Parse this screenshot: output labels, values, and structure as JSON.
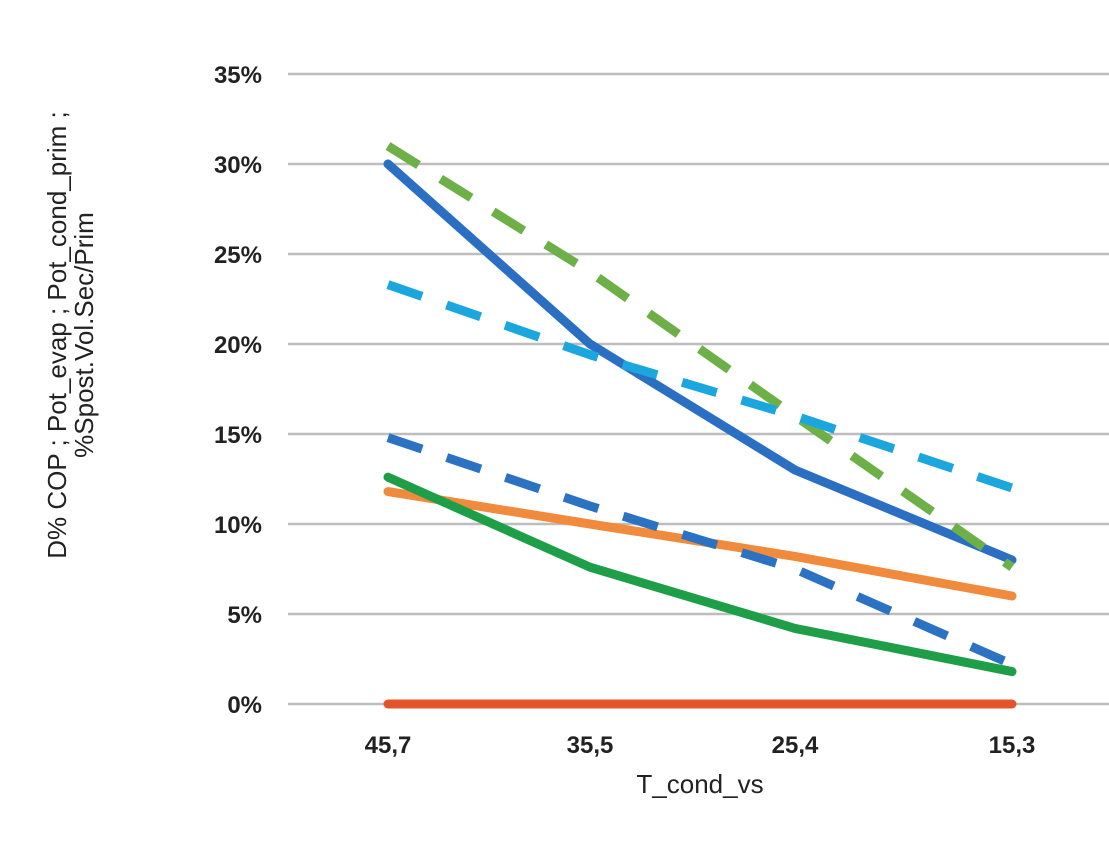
{
  "chart_data": {
    "type": "line",
    "title": "",
    "xlabel": "T_cond_vs",
    "ylabel_lines": [
      "D% COP ; Pot_evap ; Pot_cond_prim ;",
      "%Spost.Vol.Sec/Prim"
    ],
    "categories": [
      "45,7",
      "35,5",
      "25,4",
      "15,3"
    ],
    "y_ticks": [
      0,
      5,
      10,
      15,
      20,
      25,
      30,
      35
    ],
    "y_tick_labels": [
      "0%",
      "5%",
      "10%",
      "15%",
      "20%",
      "25%",
      "30%",
      "35%"
    ],
    "ylim": [
      0,
      35
    ],
    "grid": true,
    "legend": "none",
    "series": [
      {
        "color": "#e3542b",
        "dashed": false,
        "values": [
          0,
          0,
          0,
          0
        ]
      },
      {
        "color": "#f08a3c",
        "dashed": false,
        "values": [
          11.8,
          10.0,
          8.2,
          6.0
        ]
      },
      {
        "color": "#1f9e48",
        "dashed": false,
        "values": [
          12.6,
          7.6,
          4.2,
          1.8
        ]
      },
      {
        "color": "#2a6fc2",
        "dashed": false,
        "values": [
          30.0,
          20.0,
          13.0,
          8.0
        ]
      },
      {
        "color": "#6db048",
        "dashed": true,
        "values": [
          31.0,
          24.0,
          16.0,
          7.6
        ]
      },
      {
        "color": "#1ba6de",
        "dashed": true,
        "values": [
          23.3,
          19.4,
          16.0,
          12.0
        ]
      },
      {
        "color": "#2c72c2",
        "dashed": true,
        "values": [
          14.8,
          11.0,
          7.5,
          2.2
        ]
      }
    ]
  }
}
